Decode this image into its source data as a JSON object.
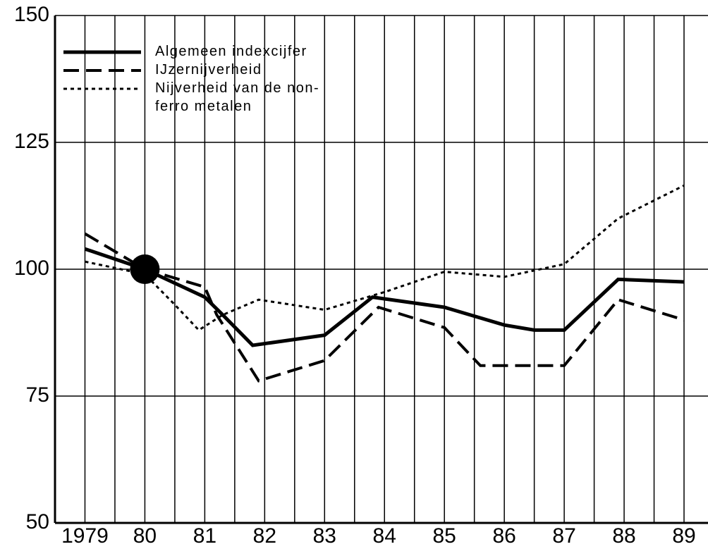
{
  "chart_data": {
    "type": "line",
    "series": [
      {
        "name": "Algemeen indexcijfer",
        "color": "#000000",
        "style": "solid",
        "x": [
          1979,
          1980,
          1981,
          1981.3,
          1981.8,
          1983,
          1983.8,
          1985,
          1986,
          1986.5,
          1987,
          1987.9,
          1989
        ],
        "values": [
          104,
          100,
          94.5,
          91,
          85,
          87,
          94.5,
          92.5,
          89,
          88,
          88,
          98,
          97.5
        ]
      },
      {
        "name": "IJzernijverheid",
        "color": "#000000",
        "style": "dashed",
        "x": [
          1979,
          1980,
          1981,
          1981.2,
          1981.9,
          1983,
          1983.9,
          1985,
          1985.6,
          1987,
          1987.9,
          1989
        ],
        "values": [
          107,
          100,
          96.5,
          91,
          78,
          82,
          92.5,
          88.5,
          81,
          81,
          94,
          90
        ]
      },
      {
        "name": "Nijverheid van de non-ferro metalen",
        "color": "#000000",
        "style": "dotted",
        "x": [
          1979,
          1980,
          1980.5,
          1980.9,
          1981.3,
          1981.9,
          1983,
          1984,
          1985,
          1986,
          1987,
          1987.9,
          1989
        ],
        "values": [
          101.5,
          99,
          93,
          88,
          91,
          94,
          92,
          95.5,
          99.5,
          98.5,
          101,
          110,
          116.5
        ]
      }
    ],
    "marker": {
      "x": 1980,
      "y": 100
    },
    "xlim": [
      1978.5,
      1989.4
    ],
    "xticks": [
      1979,
      {
        "value": 1980,
        "label": "80"
      },
      {
        "value": 1981,
        "label": "81"
      },
      {
        "value": 1982,
        "label": "82"
      },
      {
        "value": 1983,
        "label": "83"
      },
      {
        "value": 1984,
        "label": "84"
      },
      {
        "value": 1985,
        "label": "85"
      },
      {
        "value": 1986,
        "label": "86"
      },
      {
        "value": 1987,
        "label": "87"
      },
      {
        "value": 1988,
        "label": "88"
      },
      {
        "value": 1989,
        "label": "89"
      }
    ],
    "xgrid": [
      1979,
      1979.5,
      1980,
      1980.5,
      1981,
      1981.5,
      1982,
      1982.5,
      1983,
      1983.5,
      1984,
      1984.5,
      1985,
      1985.5,
      1986,
      1986.5,
      1987,
      1987.5,
      1988,
      1988.5,
      1989
    ],
    "ylim": [
      50,
      150
    ],
    "yticks": [
      50,
      75,
      100,
      125,
      150
    ],
    "grid": true,
    "legend": "upper-left"
  }
}
